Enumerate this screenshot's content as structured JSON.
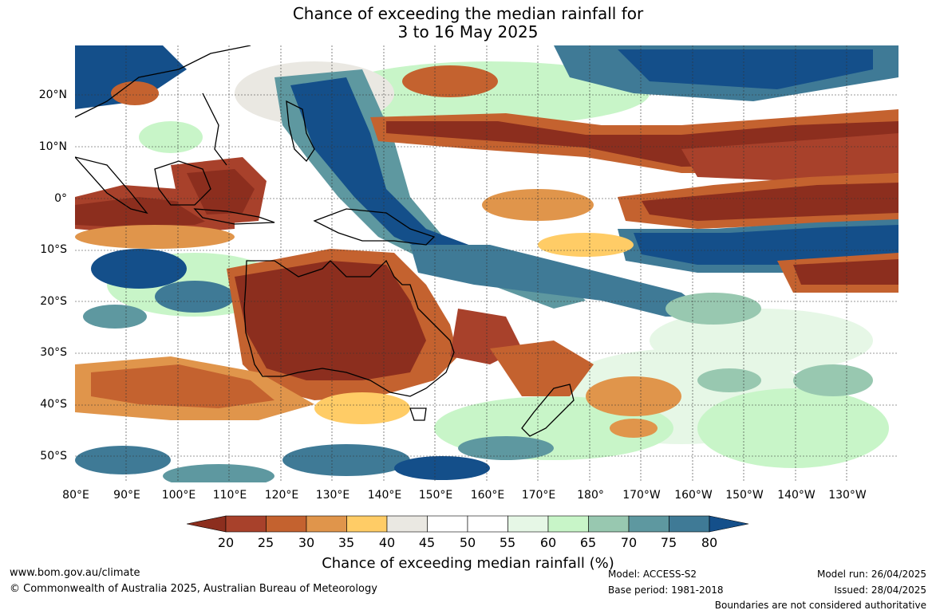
{
  "title": {
    "line1": "Chance of exceeding the median rainfall for",
    "line2": "3 to 16 May 2025"
  },
  "map": {
    "lat_labels": [
      "20°N",
      "10°N",
      "0°",
      "10°S",
      "20°S",
      "30°S",
      "40°S",
      "50°S"
    ],
    "lon_labels": [
      "80°E",
      "90°E",
      "100°E",
      "110°E",
      "120°E",
      "130°E",
      "140°E",
      "150°E",
      "160°E",
      "170°E",
      "180°",
      "170°W",
      "160°W",
      "150°W",
      "140°W",
      "130°W"
    ],
    "region": "Indo-Pacific: 80°E to 125°W, 30°N to 55°S"
  },
  "legend": {
    "ticks": [
      "20",
      "25",
      "30",
      "35",
      "40",
      "45",
      "50",
      "55",
      "60",
      "65",
      "70",
      "75",
      "80"
    ],
    "colors": [
      "#8c2e1e",
      "#a8412b",
      "#c4622f",
      "#e0954b",
      "#ffcc66",
      "#eae8e2",
      "#ffffff",
      "#ffffff",
      "#e6f7e6",
      "#c8f5c8",
      "#98c8b0",
      "#5e98a0",
      "#3f7a96",
      "#144f8a"
    ],
    "label": "Chance of exceeding median rainfall (%)"
  },
  "footer": {
    "url": "www.bom.gov.au/climate",
    "copyright": "© Commonwealth of Australia 2025, Australian Bureau of Meteorology",
    "model": "Model: ACCESS-S2",
    "base_period": "Base period: 1981-2018",
    "model_run": "Model run: 26/04/2025",
    "issued": "Issued: 28/04/2025",
    "disclaimer": "Boundaries are not considered authoritative"
  }
}
